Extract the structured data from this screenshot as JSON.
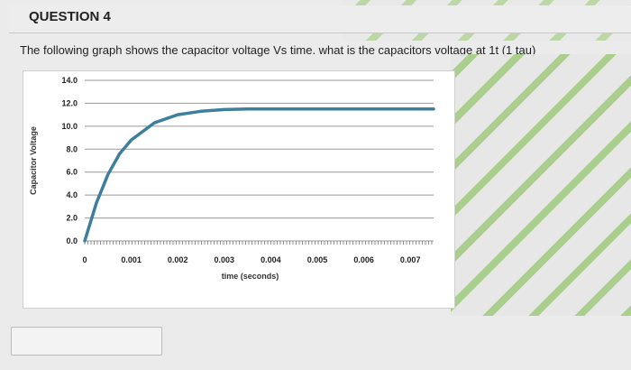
{
  "question": {
    "title": "QUESTION 4",
    "text": "The following graph shows the capacitor voltage Vs time. what is the capacitors voltage at 1t (1 tau)"
  },
  "answer": {
    "value": ""
  },
  "colors": {
    "curve": "#3d7f9c",
    "grid": "#9a9a9a",
    "accent_stripe": "#9ec97a"
  },
  "chart_data": {
    "type": "line",
    "title": "",
    "xlabel": "time (seconds)",
    "ylabel": "Capacitor Voltage",
    "xlim": [
      0,
      0.0075
    ],
    "ylim": [
      0,
      14
    ],
    "x_ticks": [
      0,
      0.001,
      0.002,
      0.003,
      0.004,
      0.005,
      0.006,
      0.007
    ],
    "x_tick_labels": [
      "0",
      "0.001",
      "0.002",
      "0.003",
      "0.004",
      "0.005",
      "0.006",
      "0.007"
    ],
    "y_ticks": [
      0,
      2,
      4,
      6,
      8,
      10,
      12,
      14
    ],
    "y_tick_labels": [
      "0.0",
      "2.0",
      "4.0",
      "6.0",
      "8.0",
      "10.0",
      "12.0",
      "14.0"
    ],
    "grid": true,
    "series": [
      {
        "x": [
          0,
          0.00025,
          0.0005,
          0.00075,
          0.001,
          0.0015,
          0.002,
          0.0025,
          0.003,
          0.0035,
          0.004,
          0.005,
          0.006,
          0.007,
          0.0075
        ],
        "values": [
          0,
          3.3,
          5.8,
          7.6,
          8.8,
          10.3,
          11.0,
          11.3,
          11.45,
          11.5,
          11.5,
          11.5,
          11.5,
          11.5,
          11.5
        ]
      }
    ]
  }
}
